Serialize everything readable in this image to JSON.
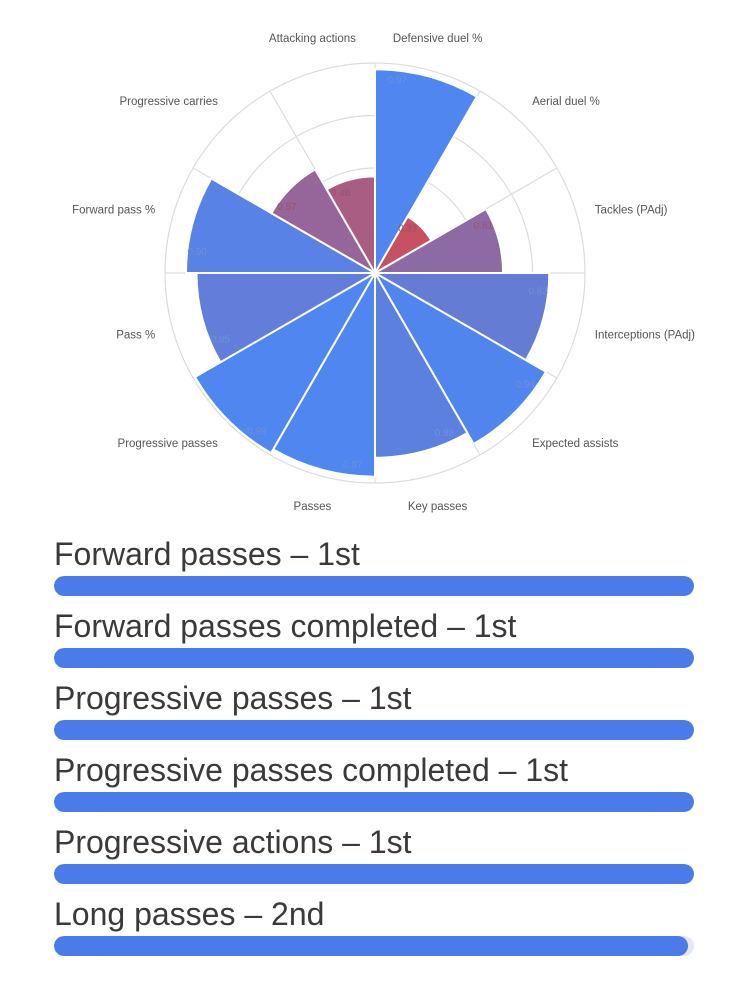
{
  "colors": {
    "high": "#4f86f0",
    "low": "#c8505e",
    "grid": "#dcdcdc",
    "bar": "#4a7be8"
  },
  "chart_data": {
    "type": "polar-bar",
    "scale": [
      0,
      1
    ],
    "categories": [
      "Defensive duel %",
      "Aerial duel %",
      "Tackles (PAdj)",
      "Interceptions (PAdj)",
      "Expected assists",
      "Key passes",
      "Passes",
      "Progressive passes",
      "Pass %",
      "Forward pass %",
      "Progressive carries",
      "Attacking actions"
    ],
    "values": [
      0.97,
      0.31,
      0.61,
      0.83,
      0.94,
      0.88,
      0.97,
      0.99,
      0.85,
      0.9,
      0.57,
      0.46
    ],
    "value_labels": [
      "0.97",
      "0.31",
      "0.61",
      "0.83",
      "0.94",
      "0.88",
      "0.97",
      "0.99",
      "0.85",
      "0.90",
      "0.57",
      "0.46"
    ]
  },
  "rankings": [
    {
      "label": "Forward passes – 1st",
      "fill": 1.0
    },
    {
      "label": "Forward passes completed – 1st",
      "fill": 1.0
    },
    {
      "label": "Progressive passes – 1st",
      "fill": 1.0
    },
    {
      "label": "Progressive passes completed – 1st",
      "fill": 1.0
    },
    {
      "label": "Progressive actions – 1st",
      "fill": 1.0
    },
    {
      "label": "Long passes – 2nd",
      "fill": 0.99
    }
  ]
}
